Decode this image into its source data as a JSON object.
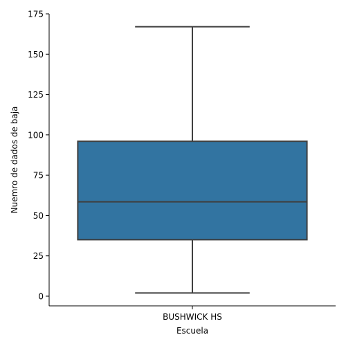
{
  "chart_data": {
    "type": "box",
    "xlabel": "Escuela",
    "ylabel": "Nuemro de dados de baja",
    "categories": [
      "BUSHWICK HS"
    ],
    "boxes": [
      {
        "category": "BUSHWICK HS",
        "whisker_low": 2,
        "q1": 35,
        "median": 58.5,
        "q3": 96,
        "whisker_high": 167
      }
    ],
    "ylim": [
      -6,
      175
    ],
    "yticks": [
      0,
      25,
      50,
      75,
      100,
      125,
      150,
      175
    ],
    "grid": false,
    "box_color": "#3274a1",
    "line_color": "#3f3f3f"
  }
}
